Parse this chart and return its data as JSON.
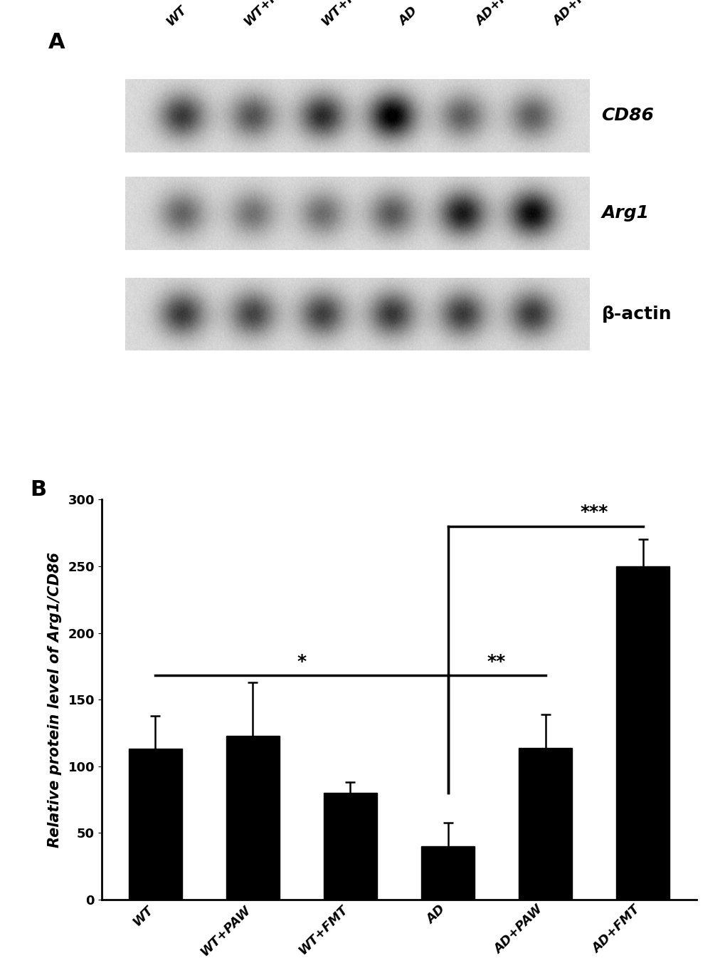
{
  "panel_A_label": "A",
  "panel_B_label": "B",
  "blot_labels": [
    "WT",
    "WT+PAW",
    "WT+FMT",
    "AD",
    "AD+PAW",
    "AD+FMT"
  ],
  "blot_row_labels": [
    "CD86",
    "Arg1",
    "β-actin"
  ],
  "cd86_intensities": [
    0.62,
    0.52,
    0.68,
    0.88,
    0.48,
    0.48
  ],
  "arg1_intensities": [
    0.45,
    0.4,
    0.42,
    0.5,
    0.75,
    0.82
  ],
  "beta_actin_intensities": [
    0.62,
    0.58,
    0.6,
    0.63,
    0.62,
    0.62
  ],
  "categories": [
    "WT",
    "WT+PAW",
    "WT+FMT",
    "AD",
    "AD+PAW",
    "AD+FMT"
  ],
  "bar_values": [
    113,
    123,
    80,
    40,
    114,
    250
  ],
  "error_bars": [
    25,
    40,
    8,
    18,
    25,
    20
  ],
  "bar_color": "#000000",
  "ylabel": "Relative protein level of Arg1/CD86",
  "ylim": [
    0,
    300
  ],
  "yticks": [
    0,
    50,
    100,
    150,
    200,
    250,
    300
  ],
  "background_color": "#ffffff",
  "blot_fontsize": 18,
  "axis_fontsize": 15,
  "tick_fontsize": 13,
  "panel_label_fontsize": 22,
  "sig_fontsize": 18
}
